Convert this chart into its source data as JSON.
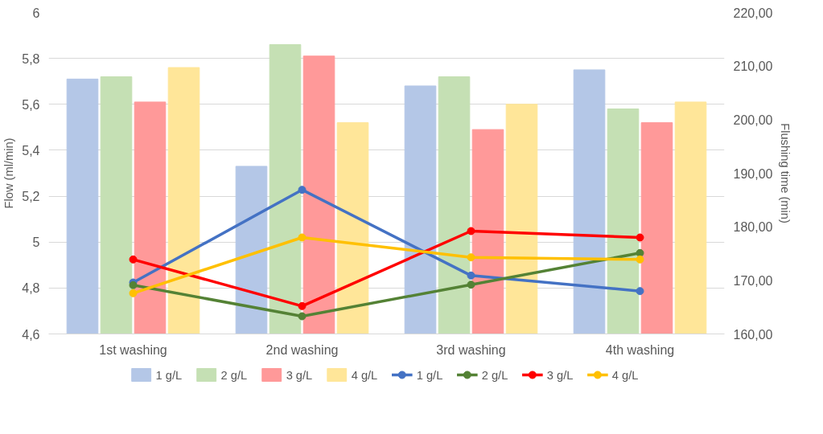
{
  "chart_data": {
    "type": "bar",
    "ylabel": "Flow (ml/min)",
    "y2label": "Flushing time (min)",
    "categories": [
      "1st washing",
      "2nd washing",
      "3rd washing",
      "4th washing"
    ],
    "series": [
      {
        "name": "1 g/L",
        "color": "#b4c7e7",
        "values": [
          5.71,
          5.33,
          5.68,
          5.75
        ]
      },
      {
        "name": "2 g/L",
        "color": "#c5e0b4",
        "values": [
          5.72,
          5.86,
          5.72,
          5.58
        ]
      },
      {
        "name": "3 g/L",
        "color": "#ff9999",
        "values": [
          5.61,
          5.81,
          5.49,
          5.52
        ]
      },
      {
        "name": "4 g/L",
        "color": "#ffe699",
        "values": [
          5.76,
          5.52,
          5.6,
          5.61
        ]
      },
      {
        "name": "1 g/L",
        "type": "line",
        "axis": "y2",
        "color": "#4472c4",
        "values": [
          169.6,
          186.9,
          170.9,
          168.0
        ]
      },
      {
        "name": "2 g/L",
        "type": "line",
        "axis": "y2",
        "color": "#548235",
        "values": [
          169.1,
          163.3,
          169.2,
          175.1
        ]
      },
      {
        "name": "3 g/L",
        "type": "line",
        "axis": "y2",
        "color": "#ff0000",
        "values": [
          173.9,
          165.2,
          179.2,
          178.0
        ]
      },
      {
        "name": "4 g/L",
        "type": "line",
        "axis": "y2",
        "color": "#ffc000",
        "values": [
          167.6,
          178.0,
          174.3,
          173.9
        ]
      }
    ],
    "ylim": [
      4.6,
      6
    ],
    "yticks": [
      {
        "value": 4.6,
        "label": "4,6"
      },
      {
        "value": 4.8,
        "label": "4,8"
      },
      5,
      {
        "value": 5.2,
        "label": "5,2"
      },
      {
        "value": 5.4,
        "label": "5,4"
      },
      {
        "value": 5.6,
        "label": "5,6"
      },
      {
        "value": 5.8,
        "label": "5,8"
      },
      6
    ],
    "y2lim": [
      160,
      220
    ],
    "y2ticks": [
      {
        "value": 160,
        "label": "160,00"
      },
      {
        "value": 170,
        "label": "170,00"
      },
      {
        "value": 180,
        "label": "180,00"
      },
      {
        "value": 190,
        "label": "190,00"
      },
      {
        "value": 200,
        "label": "200,00"
      },
      {
        "value": 210,
        "label": "210,00"
      },
      {
        "value": 220,
        "label": "220,00"
      }
    ],
    "grid": "y",
    "legend": "bottom",
    "marker": "circle",
    "line_style": "solid"
  }
}
